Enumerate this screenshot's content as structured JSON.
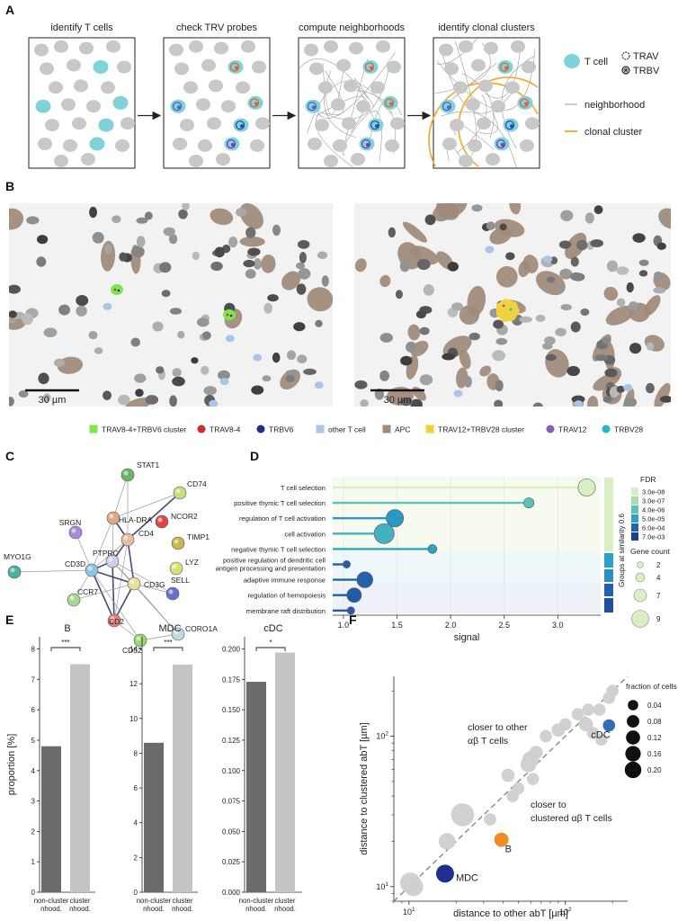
{
  "panels": {
    "A": "A",
    "B": "B",
    "C": "C",
    "D": "D",
    "E": "E",
    "F": "F"
  },
  "panelA": {
    "steps": [
      "identify T cells",
      "check TRV probes",
      "compute neighborhoods",
      "identify clonal clusters"
    ],
    "legend": {
      "tcell": "T cell",
      "trav": "TRAV",
      "trbv": "TRBV",
      "neighborhood": "neighborhood",
      "clonal": "clonal cluster"
    },
    "colors": {
      "tcell": "#7fd3d8",
      "cell": "#c8c8c8",
      "clonal": "#f5a623",
      "neighborhood": "#9a9a9a"
    }
  },
  "panelB": {
    "scalebars": [
      "30 µm",
      "30 µm"
    ],
    "legend": [
      {
        "label": "TRAV8-4+TRBV6 cluster",
        "color": "#7ee64a",
        "shape": "square"
      },
      {
        "label": "TRAV8-4",
        "color": "#d42a2a",
        "shape": "circle"
      },
      {
        "label": "TRBV6",
        "color": "#1f2f8f",
        "shape": "circle"
      },
      {
        "label": "other T cell",
        "color": "#a9c6ea",
        "shape": "square"
      },
      {
        "label": "APC",
        "color": "#a08a78",
        "shape": "square"
      },
      {
        "label": "TRAV12+TRBV28 cluster",
        "color": "#f2d23a",
        "shape": "square"
      },
      {
        "label": "TRAV12",
        "color": "#8a5fb5",
        "shape": "circle"
      },
      {
        "label": "TRBV28",
        "color": "#22b7c8",
        "shape": "circle"
      }
    ]
  },
  "panelC": {
    "nodes": [
      {
        "id": "STAT1",
        "color": "#6ab56a"
      },
      {
        "id": "CD74",
        "color": "#c6dc80"
      },
      {
        "id": "HLA-DRA",
        "color": "#e0a688"
      },
      {
        "id": "NCOR2",
        "color": "#d84a4a"
      },
      {
        "id": "SRGN",
        "color": "#a88ad8"
      },
      {
        "id": "CD4",
        "color": "#e8bca0"
      },
      {
        "id": "TIMP1",
        "color": "#c4b650"
      },
      {
        "id": "PTPRC",
        "color": "#ccd0ea"
      },
      {
        "id": "MYO1G",
        "color": "#4ab0a0"
      },
      {
        "id": "CD3D",
        "color": "#8cc4e8"
      },
      {
        "id": "CD3G",
        "color": "#e6dda0"
      },
      {
        "id": "LYZ",
        "color": "#d8e07a"
      },
      {
        "id": "SELL",
        "color": "#6a70c8"
      },
      {
        "id": "CCR7",
        "color": "#a8d890"
      },
      {
        "id": "CD2",
        "color": "#e88080"
      },
      {
        "id": "CD52",
        "color": "#9ad870"
      },
      {
        "id": "CORO1A",
        "color": "#c0d8e0"
      }
    ]
  },
  "chart_data": [
    {
      "panel": "D",
      "type": "scatter",
      "xlabel": "signal",
      "xticks": [
        1.0,
        1.5,
        2.0,
        2.5,
        3.0
      ],
      "xlim": [
        0.9,
        3.4
      ],
      "terms": [
        {
          "label": "T cell selection",
          "signal": 3.27,
          "fdr_color": "#d9efc1",
          "count": 9
        },
        {
          "label": "positive thymic T cell selection",
          "signal": 2.73,
          "fdr_color": "#5cc2b4",
          "count": 4
        },
        {
          "label": "regulation of T cell activation",
          "signal": 1.48,
          "fdr_color": "#2898c4",
          "count": 9
        },
        {
          "label": "cell activation",
          "signal": 1.38,
          "fdr_color": "#45b1bd",
          "count": 11
        },
        {
          "label": "negative thymic T cell selection",
          "signal": 1.83,
          "fdr_color": "#2aa3c4",
          "count": 3
        },
        {
          "label": "positive regulation of dendritic cell antigen processing and presentation",
          "signal": 1.03,
          "fdr_color": "#2a5aa8",
          "count": 2
        },
        {
          "label": "adaptive immune response",
          "signal": 1.2,
          "fdr_color": "#2462ad",
          "count": 8
        },
        {
          "label": "regulation of hemopoiesis",
          "signal": 1.1,
          "fdr_color": "#1f5da9",
          "count": 7
        },
        {
          "label": "membrane raft distribution",
          "signal": 1.07,
          "fdr_color": "#2a5aa8",
          "count": 2
        }
      ],
      "group_label": "Groups at similarity 0.6",
      "legend_fdr_title": "FDR",
      "legend_fdr": [
        {
          "label": "3.0e-08",
          "color": "#d9efc1"
        },
        {
          "label": "3.0e-07",
          "color": "#a8dcb4"
        },
        {
          "label": "4.0e-06",
          "color": "#5cc2b4"
        },
        {
          "label": "5.0e-05",
          "color": "#2aa3c4"
        },
        {
          "label": "6.0e-04",
          "color": "#2462ad"
        },
        {
          "label": "7.0e-03",
          "color": "#1d3f8f"
        }
      ],
      "legend_count_title": "Gene count",
      "legend_count": [
        "2",
        "4",
        "7",
        "9"
      ]
    },
    {
      "panel": "E",
      "type": "bar",
      "ylabel": "proportion [%]",
      "categories": [
        "non-cluster\nnhood.",
        "cluster\nnhood."
      ],
      "cat_lines": [
        [
          "non-cluster",
          "nhood."
        ],
        [
          "cluster",
          "nhood."
        ]
      ],
      "subplots": [
        {
          "title": "B",
          "values": [
            4.8,
            7.5
          ],
          "ylim": [
            0,
            8.4
          ],
          "yticks": [
            "0",
            "1",
            "2",
            "3",
            "4",
            "5",
            "6",
            "7",
            "8"
          ],
          "tickvals": [
            0,
            1,
            2,
            3,
            4,
            5,
            6,
            7,
            8
          ],
          "sig": "***"
        },
        {
          "title": "MDC",
          "values": [
            8.6,
            13.1
          ],
          "ylim": [
            0,
            14.7
          ],
          "yticks": [
            "0",
            "2",
            "4",
            "6",
            "8",
            "10",
            "12",
            "14"
          ],
          "tickvals": [
            0,
            2,
            4,
            6,
            8,
            10,
            12,
            14
          ],
          "sig": "***"
        },
        {
          "title": "cDC",
          "values": [
            0.173,
            0.197
          ],
          "ylim": [
            0,
            0.21
          ],
          "yticks": [
            "0.000",
            "0.025",
            "0.050",
            "0.075",
            "0.100",
            "0.125",
            "0.150",
            "0.175",
            "0.200"
          ],
          "tickvals": [
            0,
            0.025,
            0.05,
            0.075,
            0.1,
            0.125,
            0.15,
            0.175,
            0.2
          ],
          "sig": "*"
        }
      ],
      "colors": [
        "#6b6b6b",
        "#c4c4c4"
      ]
    },
    {
      "panel": "F",
      "type": "scatter",
      "log_scale": true,
      "xlabel": "distance to other abT [µm]",
      "ylabel": "distance to clustered abT [µm]",
      "xlim": [
        8,
        250
      ],
      "ylim": [
        8,
        250
      ],
      "region_upper": [
        "closer to other",
        "αβ T cells"
      ],
      "region_lower": [
        "closer to",
        "clustered αβ T cells"
      ],
      "legend_title": "fraction of cells",
      "legend_sizes": [
        "0.04",
        "0.08",
        "0.12",
        "0.16",
        "0.20"
      ],
      "legend_size_vals": [
        0.04,
        0.08,
        0.12,
        0.16,
        0.2
      ],
      "labeled": [
        {
          "label": "cDC",
          "x": 190,
          "y": 118,
          "frac": 0.03,
          "color": "#2f6fb0"
        },
        {
          "label": "B",
          "x": 39,
          "y": 20.5,
          "frac": 0.05,
          "color": "#f08a24"
        },
        {
          "label": "MDC",
          "x": 17,
          "y": 12.2,
          "frac": 0.1,
          "color": "#1f2f8f"
        }
      ],
      "points": [
        {
          "x": 10.2,
          "y": 10.6,
          "frac": 0.15
        },
        {
          "x": 10.7,
          "y": 10.0,
          "frac": 0.12
        },
        {
          "x": 17.5,
          "y": 20,
          "frac": 0.08
        },
        {
          "x": 22,
          "y": 30,
          "frac": 0.2
        },
        {
          "x": 33,
          "y": 28,
          "frac": 0.03
        },
        {
          "x": 43,
          "y": 55,
          "frac": 0.04
        },
        {
          "x": 46,
          "y": 40,
          "frac": 0.03
        },
        {
          "x": 50,
          "y": 45,
          "frac": 0.03
        },
        {
          "x": 58,
          "y": 65,
          "frac": 0.07
        },
        {
          "x": 60,
          "y": 70,
          "frac": 0.08
        },
        {
          "x": 62,
          "y": 52,
          "frac": 0.03
        },
        {
          "x": 65,
          "y": 78,
          "frac": 0.04
        },
        {
          "x": 75,
          "y": 100,
          "frac": 0.03
        },
        {
          "x": 90,
          "y": 110,
          "frac": 0.04
        },
        {
          "x": 100,
          "y": 120,
          "frac": 0.03
        },
        {
          "x": 120,
          "y": 140,
          "frac": 0.03
        },
        {
          "x": 135,
          "y": 120,
          "frac": 0.05
        },
        {
          "x": 140,
          "y": 150,
          "frac": 0.03
        },
        {
          "x": 150,
          "y": 105,
          "frac": 0.03
        },
        {
          "x": 165,
          "y": 150,
          "frac": 0.03
        },
        {
          "x": 170,
          "y": 95,
          "frac": 0.03
        },
        {
          "x": 190,
          "y": 180,
          "frac": 0.03
        },
        {
          "x": 200,
          "y": 200,
          "frac": 0.03
        }
      ]
    }
  ]
}
